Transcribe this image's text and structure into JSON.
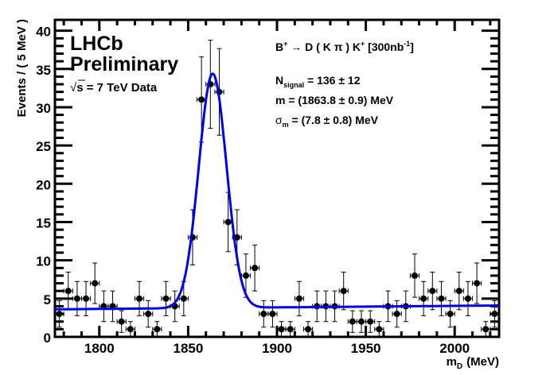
{
  "chart_data": {
    "type": "scatter",
    "title": "",
    "xlabel": "m",
    "xlabel_sub": "D",
    "xlabel_unit": "(MeV)",
    "ylabel": "Events / ( 5 MeV )",
    "xlim": [
      1775,
      2025
    ],
    "ylim": [
      0,
      40
    ],
    "grid": false,
    "x_ticks": [
      1800,
      1850,
      1900,
      1950,
      2000
    ],
    "x_tick_labels": [
      "1800",
      "1850",
      "1900",
      "1950",
      "2000"
    ],
    "y_ticks": [
      0,
      5,
      10,
      15,
      20,
      25,
      30,
      35,
      40
    ],
    "y_tick_labels": [
      "0",
      "5",
      "10",
      "15",
      "20",
      "25",
      "30",
      "35",
      "40"
    ],
    "bin_width": 5,
    "series": [
      {
        "name": "Data",
        "style": "points-with-errorbars",
        "color": "#000000",
        "x": [
          1777.5,
          1782.5,
          1787.5,
          1792.5,
          1797.5,
          1802.5,
          1807.5,
          1812.5,
          1817.5,
          1822.5,
          1827.5,
          1832.5,
          1837.5,
          1842.5,
          1847.5,
          1852.5,
          1857.5,
          1862.5,
          1867.5,
          1872.5,
          1877.5,
          1882.5,
          1887.5,
          1892.5,
          1897.5,
          1902.5,
          1907.5,
          1912.5,
          1917.5,
          1922.5,
          1927.5,
          1932.5,
          1937.5,
          1942.5,
          1947.5,
          1952.5,
          1957.5,
          1962.5,
          1967.5,
          1972.5,
          1977.5,
          1982.5,
          1987.5,
          1992.5,
          1997.5,
          2002.5,
          2007.5,
          2012.5,
          2017.5,
          2022.5
        ],
        "y": [
          3,
          6,
          5,
          5,
          7,
          4,
          4,
          2,
          1,
          5,
          3,
          1,
          5,
          4,
          5,
          13,
          31,
          33,
          32,
          15,
          13,
          8,
          9,
          3,
          3,
          1,
          1,
          5,
          1,
          4,
          4,
          4,
          6,
          2,
          2,
          2,
          1,
          4,
          3,
          4,
          8,
          5,
          6,
          5,
          3,
          6,
          5,
          7,
          1,
          3
        ]
      },
      {
        "name": "Fit",
        "style": "line",
        "color": "#0000ee",
        "model": "gaussian-plus-linear",
        "mean": 1863.8,
        "sigma": 7.8,
        "amplitude": 30.6,
        "background_at_xmin": 3.6,
        "background_at_xmax": 4.1
      }
    ],
    "annotations": {
      "experiment": "LHCb",
      "status": "Preliminary",
      "energy": "√s = 7 TeV Data",
      "energy_sqrt": "√",
      "energy_rest": "s = 7 TeV Data",
      "decay": "B+ → D ( K π ) K+ [300nb-1]",
      "decay_parts": {
        "b": "B",
        "b_sup": "+",
        "arrow": " → D ( K π ) K",
        "k_sup": "+",
        "lumi_pre": " [300nb",
        "lumi_sup": "-1",
        "lumi_post": "]"
      },
      "nsignal": "Nsignal = 136 ± 12",
      "nsignal_parts": {
        "n": "N",
        "sub": "signal",
        "rest": " = 136 ± 12"
      },
      "mass": "m = (1863.8 ± 0.9) MeV",
      "sigma": "σm = (7.8 ± 0.8) MeV",
      "sigma_parts": {
        "s": "σ",
        "sub": "m",
        "rest": " = (7.8 ± 0.8) MeV"
      }
    }
  }
}
